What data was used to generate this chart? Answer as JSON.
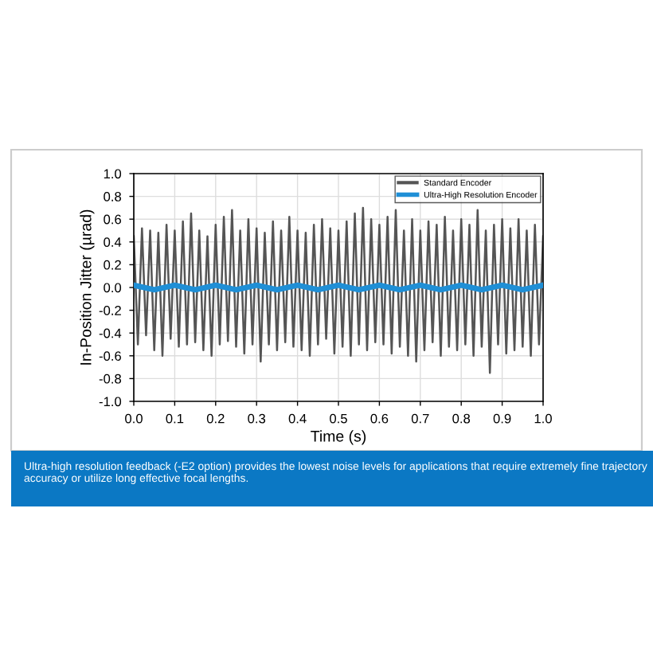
{
  "chart_data": {
    "type": "line",
    "xlabel": "Time (s)",
    "ylabel": "In-Position Jitter (µrad)",
    "annotations": [
      "Ultra-high resolution feedback (-E2 option) provides the lowest noise levels for applications that require extremely fine trajectory accuracy or utilize long effective focal lengths."
    ],
    "xlim": [
      0,
      1
    ],
    "ylim": [
      -1,
      1
    ],
    "xticks": [
      {
        "value": 0,
        "label": "0.0"
      },
      {
        "value": 0.1,
        "label": "0.1"
      },
      {
        "value": 0.2,
        "label": "0.2"
      },
      {
        "value": 0.3,
        "label": "0.3"
      },
      {
        "value": 0.4,
        "label": "0.4"
      },
      {
        "value": 0.5,
        "label": "0.5"
      },
      {
        "value": 0.6,
        "label": "0.6"
      },
      {
        "value": 0.7,
        "label": "0.7"
      },
      {
        "value": 0.8,
        "label": "0.8"
      },
      {
        "value": 0.9,
        "label": "0.9"
      },
      {
        "value": 1,
        "label": "1.0"
      }
    ],
    "yticks": [
      {
        "value": -1,
        "label": "-1.0"
      },
      {
        "value": -0.8,
        "label": "-0.8"
      },
      {
        "value": -0.6,
        "label": "-0.6"
      },
      {
        "value": -0.4,
        "label": "-0.4"
      },
      {
        "value": -0.2,
        "label": "-0.2"
      },
      {
        "value": 0,
        "label": "0.0"
      },
      {
        "value": 0.2,
        "label": "0.2"
      },
      {
        "value": 0.4,
        "label": "0.4"
      },
      {
        "value": 0.6,
        "label": "0.6"
      },
      {
        "value": 0.8,
        "label": "0.8"
      },
      {
        "value": 1,
        "label": "1.0"
      }
    ],
    "grid": true,
    "legend": "top right",
    "marker": "none",
    "line_style": "solid",
    "series": [
      {
        "name": "Standard Encoder",
        "color": "#555555",
        "x": [
          0,
          0.01,
          0.02,
          0.03,
          0.04,
          0.05,
          0.06,
          0.07,
          0.08,
          0.09,
          0.1,
          0.11,
          0.12,
          0.13,
          0.14,
          0.15,
          0.16,
          0.17,
          0.18,
          0.19,
          0.2,
          0.21,
          0.22,
          0.23,
          0.24,
          0.25,
          0.26,
          0.27,
          0.28,
          0.29,
          0.3,
          0.31,
          0.32,
          0.33,
          0.34,
          0.35,
          0.36,
          0.37,
          0.38,
          0.39,
          0.4,
          0.41,
          0.42,
          0.43,
          0.44,
          0.45,
          0.46,
          0.47,
          0.48,
          0.49,
          0.5,
          0.51,
          0.52,
          0.53,
          0.54,
          0.55,
          0.56,
          0.57,
          0.58,
          0.59,
          0.6,
          0.61,
          0.62,
          0.63,
          0.64,
          0.65,
          0.66,
          0.67,
          0.68,
          0.69,
          0.7,
          0.71,
          0.72,
          0.73,
          0.74,
          0.75,
          0.76,
          0.77,
          0.78,
          0.79,
          0.8,
          0.81,
          0.82,
          0.83,
          0.84,
          0.85,
          0.86,
          0.87,
          0.88,
          0.89,
          0.9,
          0.91,
          0.92,
          0.93,
          0.94,
          0.95,
          0.96,
          0.97,
          0.98,
          0.99,
          1
        ],
        "values": [
          0.45,
          -0.5,
          0.52,
          -0.42,
          0.5,
          -0.55,
          0.48,
          -0.6,
          0.55,
          -0.45,
          0.5,
          -0.52,
          0.58,
          -0.5,
          0.65,
          -0.48,
          0.5,
          -0.55,
          0.45,
          -0.6,
          0.55,
          -0.5,
          0.62,
          -0.47,
          0.68,
          -0.52,
          0.5,
          -0.58,
          0.6,
          -0.5,
          0.52,
          -0.65,
          0.48,
          -0.5,
          0.58,
          -0.55,
          0.5,
          -0.48,
          0.62,
          -0.52,
          0.5,
          -0.55,
          0.48,
          -0.6,
          0.55,
          -0.5,
          0.6,
          -0.45,
          0.52,
          -0.58,
          0.5,
          -0.52,
          0.58,
          -0.6,
          0.65,
          -0.5,
          0.7,
          -0.55,
          0.6,
          -0.48,
          0.55,
          -0.5,
          0.62,
          -0.58,
          0.68,
          -0.52,
          0.5,
          -0.6,
          0.6,
          -0.65,
          0.5,
          -0.55,
          0.58,
          -0.48,
          0.55,
          -0.6,
          0.62,
          -0.52,
          0.5,
          -0.55,
          0.6,
          -0.5,
          0.55,
          -0.6,
          0.68,
          -0.52,
          0.5,
          -0.75,
          0.55,
          -0.5,
          0.6,
          -0.58,
          0.52,
          -0.55,
          0.6,
          -0.52,
          0.5,
          -0.6,
          0.55,
          -0.5,
          0.45
        ]
      },
      {
        "name": "Ultra-High Resolution Encoder",
        "color": "#1f8fd6",
        "x": [
          0,
          0.05,
          0.1,
          0.15,
          0.2,
          0.25,
          0.3,
          0.35,
          0.4,
          0.45,
          0.5,
          0.55,
          0.6,
          0.65,
          0.7,
          0.75,
          0.8,
          0.85,
          0.9,
          0.95,
          1
        ],
        "values": [
          0.02,
          -0.02,
          0.02,
          -0.02,
          0.02,
          -0.02,
          0.02,
          -0.02,
          0.02,
          -0.02,
          0.02,
          -0.02,
          0.02,
          -0.02,
          0.02,
          -0.02,
          0.02,
          -0.02,
          0.02,
          -0.02,
          0.02
        ]
      }
    ]
  }
}
